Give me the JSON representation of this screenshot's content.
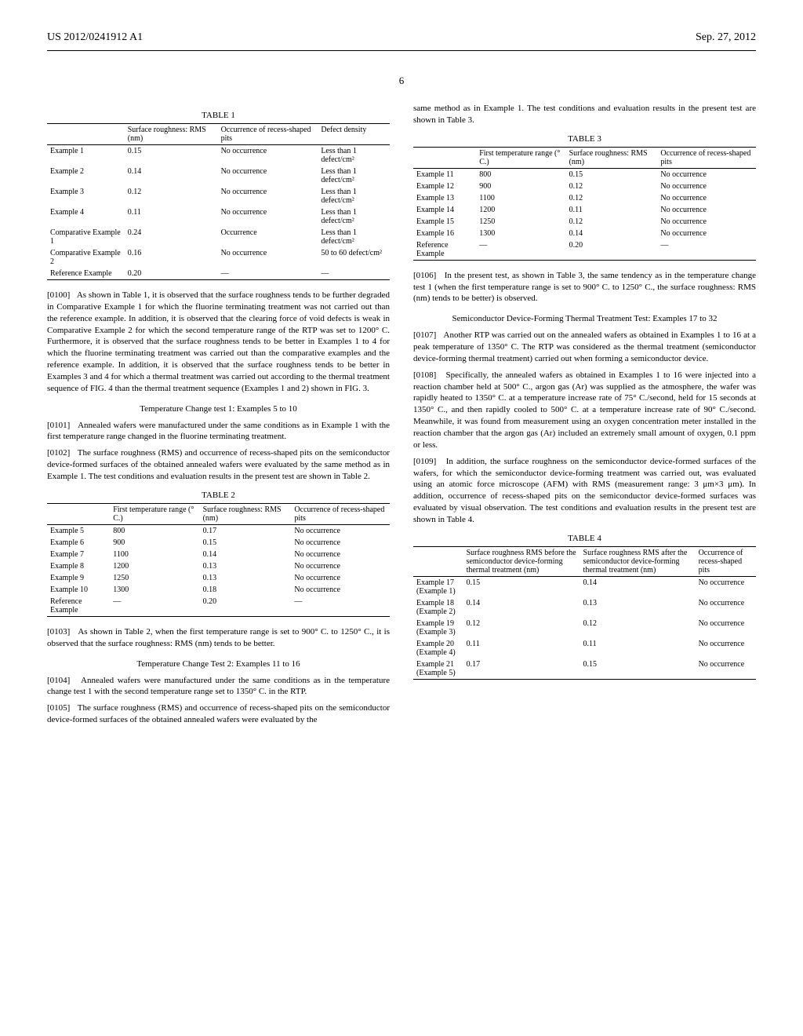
{
  "header": {
    "left": "US 2012/0241912 A1",
    "right": "Sep. 27, 2012"
  },
  "page_number": "6",
  "table1": {
    "title": "TABLE 1",
    "headers": [
      "",
      "Surface roughness: RMS (nm)",
      "Occurrence of recess-shaped pits",
      "Defect density"
    ],
    "rows": [
      [
        "Example 1",
        "0.15",
        "No occurrence",
        "Less than 1 defect/cm²"
      ],
      [
        "Example 2",
        "0.14",
        "No occurrence",
        "Less than 1 defect/cm²"
      ],
      [
        "Example 3",
        "0.12",
        "No occurrence",
        "Less than 1 defect/cm²"
      ],
      [
        "Example 4",
        "0.11",
        "No occurrence",
        "Less than 1 defect/cm²"
      ],
      [
        "Comparative Example 1",
        "0.24",
        "Occurrence",
        "Less than 1 defect/cm²"
      ],
      [
        "Comparative Example 2",
        "0.16",
        "No occurrence",
        "50 to 60 defect/cm²"
      ],
      [
        "Reference Example",
        "0.20",
        "—",
        "—"
      ]
    ]
  },
  "para0100": {
    "num": "[0100]",
    "text": "As shown in Table 1, it is observed that the surface roughness tends to be further degraded in Comparative Example 1 for which the fluorine terminating treatment was not carried out than the reference example. In addition, it is observed that the clearing force of void defects is weak in Comparative Example 2 for which the second temperature range of the RTP was set to 1200° C. Furthermore, it is observed that the surface roughness tends to be better in Examples 1 to 4 for which the fluorine terminating treatment was carried out than the comparative examples and the reference example. In addition, it is observed that the surface roughness tends to be better in Examples 3 and 4 for which a thermal treatment was carried out according to the thermal treatment sequence of FIG. 4 than the thermal treatment sequence (Examples 1 and 2) shown in FIG. 3."
  },
  "section_title_1": "Temperature Change test 1: Examples 5 to 10",
  "para0101": {
    "num": "[0101]",
    "text": "Annealed wafers were manufactured under the same conditions as in Example 1 with the first temperature range changed in the fluorine terminating treatment."
  },
  "para0102": {
    "num": "[0102]",
    "text": "The surface roughness (RMS) and occurrence of recess-shaped pits on the semiconductor device-formed surfaces of the obtained annealed wafers were evaluated by the same method as in Example 1. The test conditions and evaluation results in the present test are shown in Table 2."
  },
  "table2": {
    "title": "TABLE 2",
    "headers": [
      "",
      "First temperature range (° C.)",
      "Surface roughness: RMS (nm)",
      "Occurrence of recess-shaped pits"
    ],
    "rows": [
      [
        "Example 5",
        "800",
        "0.17",
        "No occurrence"
      ],
      [
        "Example 6",
        "900",
        "0.15",
        "No occurrence"
      ],
      [
        "Example 7",
        "1100",
        "0.14",
        "No occurrence"
      ],
      [
        "Example 8",
        "1200",
        "0.13",
        "No occurrence"
      ],
      [
        "Example 9",
        "1250",
        "0.13",
        "No occurrence"
      ],
      [
        "Example 10",
        "1300",
        "0.18",
        "No occurrence"
      ],
      [
        "Reference Example",
        "—",
        "0.20",
        "—"
      ]
    ]
  },
  "para0103": {
    "num": "[0103]",
    "text": "As shown in Table 2, when the first temperature range is set to 900° C. to 1250° C., it is observed that the surface roughness: RMS (nm) tends to be better."
  },
  "section_title_2": "Temperature Change Test 2: Examples 11 to 16",
  "para0104": {
    "num": "[0104]",
    "text": "Annealed wafers were manufactured under the same conditions as in the temperature change test 1 with the second temperature range set to 1350° C. in the RTP."
  },
  "para0105": {
    "num": "[0105]",
    "text": "The surface roughness (RMS) and occurrence of recess-shaped pits on the semiconductor device-formed surfaces of the obtained annealed wafers were evaluated by the"
  },
  "para0105_cont": "same method as in Example 1. The test conditions and evaluation results in the present test are shown in Table 3.",
  "table3": {
    "title": "TABLE 3",
    "headers": [
      "",
      "First temperature range (° C.)",
      "Surface roughness: RMS (nm)",
      "Occurrence of recess-shaped pits"
    ],
    "rows": [
      [
        "Example 11",
        "800",
        "0.15",
        "No occurrence"
      ],
      [
        "Example 12",
        "900",
        "0.12",
        "No occurrence"
      ],
      [
        "Example 13",
        "1100",
        "0.12",
        "No occurrence"
      ],
      [
        "Example 14",
        "1200",
        "0.11",
        "No occurrence"
      ],
      [
        "Example 15",
        "1250",
        "0.12",
        "No occurrence"
      ],
      [
        "Example 16",
        "1300",
        "0.14",
        "No occurrence"
      ],
      [
        "Reference Example",
        "—",
        "0.20",
        "—"
      ]
    ]
  },
  "para0106": {
    "num": "[0106]",
    "text": "In the present test, as shown in Table 3, the same tendency as in the temperature change test 1 (when the first temperature range is set to 900° C. to 1250° C., the surface roughness: RMS (nm) tends to be better) is observed."
  },
  "section_title_3": "Semiconductor Device-Forming Thermal Treatment Test: Examples 17 to 32",
  "para0107": {
    "num": "[0107]",
    "text": "Another RTP was carried out on the annealed wafers as obtained in Examples 1 to 16 at a peak temperature of 1350° C. The RTP was considered as the thermal treatment (semiconductor device-forming thermal treatment) carried out when forming a semiconductor device."
  },
  "para0108": {
    "num": "[0108]",
    "text": "Specifically, the annealed wafers as obtained in Examples 1 to 16 were injected into a reaction chamber held at 500° C., argon gas (Ar) was supplied as the atmosphere, the wafer was rapidly heated to 1350° C. at a temperature increase rate of 75° C./second, held for 15 seconds at 1350° C., and then rapidly cooled to 500° C. at a temperature increase rate of 90° C./second. Meanwhile, it was found from measurement using an oxygen concentration meter installed in the reaction chamber that the argon gas (Ar) included an extremely small amount of oxygen, 0.1 ppm or less."
  },
  "para0109": {
    "num": "[0109]",
    "text": "In addition, the surface roughness on the semiconductor device-formed surfaces of the wafers, for which the semiconductor device-forming treatment was carried out, was evaluated using an atomic force microscope (AFM) with RMS (measurement range: 3 μm×3 μm). In addition, occurrence of recess-shaped pits on the semiconductor device-formed surfaces was evaluated by visual observation. The test conditions and evaluation results in the present test are shown in Table 4."
  },
  "table4": {
    "title": "TABLE 4",
    "headers": [
      "",
      "Surface roughness RMS before the semiconductor device-forming thermal treatment (nm)",
      "Surface roughness RMS after the semiconductor device-forming thermal treatment (nm)",
      "Occurrence of recess-shaped pits"
    ],
    "rows": [
      [
        "Example 17 (Example 1)",
        "0.15",
        "0.14",
        "No occurrence"
      ],
      [
        "Example 18 (Example 2)",
        "0.14",
        "0.13",
        "No occurrence"
      ],
      [
        "Example 19 (Example 3)",
        "0.12",
        "0.12",
        "No occurrence"
      ],
      [
        "Example 20 (Example 4)",
        "0.11",
        "0.11",
        "No occurrence"
      ],
      [
        "Example 21 (Example 5)",
        "0.17",
        "0.15",
        "No occurrence"
      ]
    ]
  }
}
